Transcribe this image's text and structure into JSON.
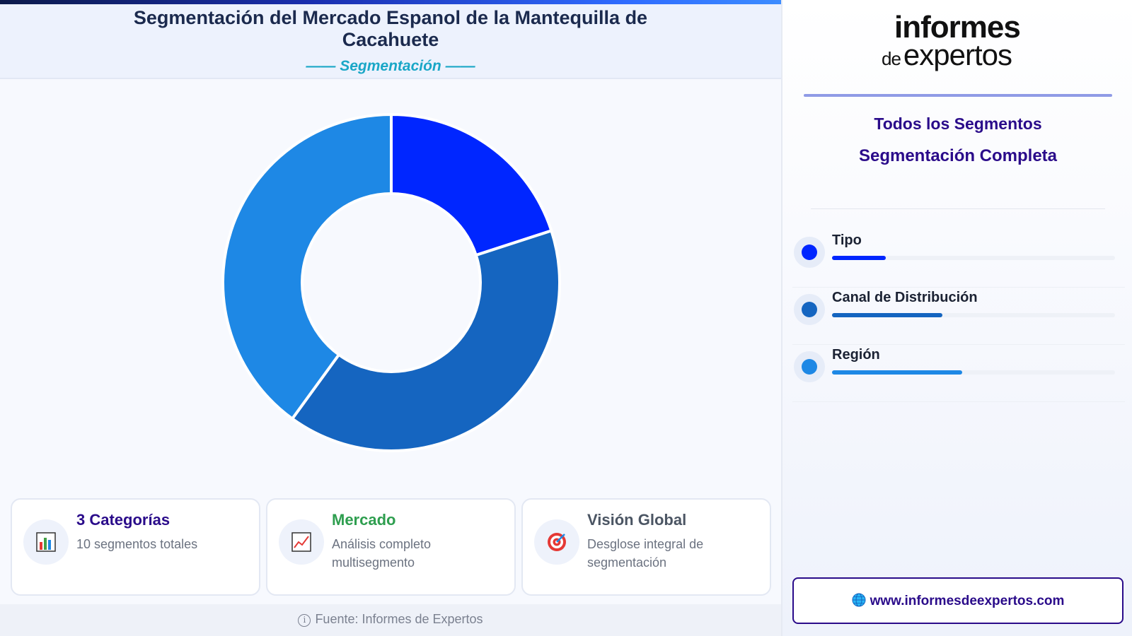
{
  "header": {
    "title": "Segmentación del Mercado Espanol de la Mantequilla de Cacahuete",
    "subtitle": "—— Segmentación ——"
  },
  "chart_data": {
    "type": "pie",
    "title": "Segmentación del Mercado Espanol de la Mantequilla de Cacahuete",
    "categories": [
      "Tipo",
      "Canal de Distribución",
      "Región"
    ],
    "values": [
      2,
      4,
      4
    ],
    "colors": [
      "#0026ff",
      "#1565c0",
      "#1e88e5"
    ],
    "donut": true,
    "legend": "right"
  },
  "cards": [
    {
      "title": "3 Categorías",
      "desc": "10 segmentos totales",
      "icon": "bar-chart-icon",
      "color": "#2a0b8a"
    },
    {
      "title": "Mercado",
      "desc": "Análisis completo multisegmento",
      "icon": "line-chart-icon",
      "color": "#2e9e4f"
    },
    {
      "title": "Visión Global",
      "desc": "Desglose integral de segmentación",
      "icon": "target-icon",
      "color": "#4b5563"
    }
  ],
  "footer": {
    "source": "Fuente: Informes de Expertos",
    "icon": "info-icon"
  },
  "sidebar": {
    "logo": {
      "line1": "informes",
      "line2_prefix": "de",
      "line2": "expertos"
    },
    "title": "Todos los Segmentos",
    "subtitle": "Segmentación Completa",
    "segments": [
      {
        "label": "Tipo",
        "color": "#0026ff",
        "level": 0.19
      },
      {
        "label": "Canal de Distribución",
        "color": "#1565c0",
        "level": 0.39
      },
      {
        "label": "Región",
        "color": "#1e88e5",
        "level": 0.46
      }
    ],
    "website": "www.informesdeexpertos.com",
    "website_icon": "globe-icon"
  }
}
